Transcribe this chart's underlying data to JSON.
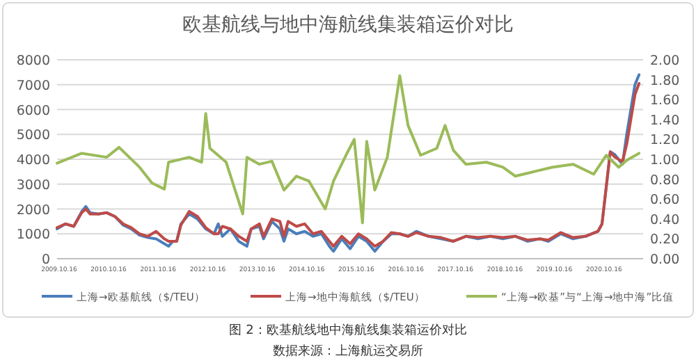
{
  "chart_data": {
    "type": "line",
    "title": "欧基航线与地中海航线集装箱运价对比",
    "annotations": [
      "图 2：欧基航线地中海航线集装箱运价对比",
      "数据来源：上海航运交易所"
    ],
    "xlim": [
      "2009-10-01",
      "2021-07-31"
    ],
    "xticks": [
      {
        "value": "2009-10-16",
        "label": "2009.10.16"
      },
      {
        "value": "2010-10-16",
        "label": "2010.10.16"
      },
      {
        "value": "2011-10-16",
        "label": "2011.10.16"
      },
      {
        "value": "2012-10-16",
        "label": "2012.10.16"
      },
      {
        "value": "2013-10-16",
        "label": "2013.10.16"
      },
      {
        "value": "2014-10-16",
        "label": "2014.10.16"
      },
      {
        "value": "2015-10-16",
        "label": "2015.10.16"
      },
      {
        "value": "2016-10-16",
        "label": "2016.10.16"
      },
      {
        "value": "2017-10-16",
        "label": "2017.10.16"
      },
      {
        "value": "2018-10-16",
        "label": "2018.10.16"
      },
      {
        "value": "2019-10-16",
        "label": "2019.10.16"
      },
      {
        "value": "2020-10-16",
        "label": "2020.10.16"
      }
    ],
    "ylim": [
      0,
      8000
    ],
    "yticks": [
      0,
      1000,
      2000,
      3000,
      4000,
      5000,
      6000,
      7000,
      8000
    ],
    "y2lim": [
      0,
      2
    ],
    "y2ticks": [
      {
        "value": 0,
        "label": "0.00"
      },
      {
        "value": 0.2,
        "label": "0.20"
      },
      {
        "value": 0.4,
        "label": "0.40"
      },
      {
        "value": 0.6,
        "label": "0.60"
      },
      {
        "value": 0.8,
        "label": "0.80"
      },
      {
        "value": 1,
        "label": "1.00"
      },
      {
        "value": 1.2,
        "label": "1.20"
      },
      {
        "value": 1.4,
        "label": "1.40"
      },
      {
        "value": 1.6,
        "label": "1.60"
      },
      {
        "value": 1.8,
        "label": "1.80"
      },
      {
        "value": 2,
        "label": "2.00"
      }
    ],
    "grid": "y",
    "legend": "bottom",
    "marker": "none",
    "line_style": "solid",
    "series": [
      {
        "name": "上海→欧基航线（$/TEU）",
        "color": "#4a7ebb",
        "x": [
          "2009-10",
          "2009-12",
          "2010-02",
          "2010-04",
          "2010-05",
          "2010-06",
          "2010-08",
          "2010-10",
          "2010-12",
          "2011-02",
          "2011-04",
          "2011-06",
          "2011-08",
          "2011-10",
          "2011-12",
          "2012-01",
          "2012-02",
          "2012-03",
          "2012-04",
          "2012-06",
          "2012-08",
          "2012-10",
          "2012-12",
          "2013-01",
          "2013-02",
          "2013-04",
          "2013-06",
          "2013-08",
          "2013-09",
          "2013-11",
          "2013-12",
          "2014-02",
          "2014-04",
          "2014-05",
          "2014-06",
          "2014-08",
          "2014-10",
          "2014-12",
          "2015-02",
          "2015-04",
          "2015-05",
          "2015-07",
          "2015-09",
          "2015-11",
          "2016-01",
          "2016-03",
          "2016-05",
          "2016-07",
          "2016-09",
          "2016-11",
          "2017-01",
          "2017-04",
          "2017-07",
          "2017-10",
          "2018-01",
          "2018-04",
          "2018-07",
          "2018-10",
          "2019-01",
          "2019-04",
          "2019-07",
          "2019-09",
          "2019-12",
          "2020-03",
          "2020-06",
          "2020-09",
          "2020-10",
          "2020-12",
          "2021-01",
          "2021-03",
          "2021-04",
          "2021-06",
          "2021-07"
        ],
        "values": [
          1200,
          1400,
          1300,
          1900,
          2100,
          1850,
          1800,
          1850,
          1700,
          1350,
          1200,
          950,
          850,
          800,
          600,
          500,
          700,
          700,
          1400,
          1800,
          1600,
          1200,
          1000,
          1400,
          900,
          1200,
          700,
          500,
          1200,
          1300,
          800,
          1500,
          1200,
          700,
          1200,
          1000,
          1100,
          900,
          1000,
          500,
          300,
          800,
          400,
          900,
          700,
          300,
          700,
          1000,
          1000,
          900,
          1100,
          900,
          800,
          700,
          900,
          800,
          900,
          800,
          900,
          700,
          800,
          700,
          1000,
          800,
          900,
          1100,
          1400,
          4300,
          4200,
          3800,
          5000,
          7000,
          7400
        ]
      },
      {
        "name": "上海→地中海航线（$/TEU）",
        "color": "#be4b48",
        "x": [
          "2009-10",
          "2009-12",
          "2010-02",
          "2010-04",
          "2010-05",
          "2010-06",
          "2010-08",
          "2010-10",
          "2010-12",
          "2011-02",
          "2011-04",
          "2011-06",
          "2011-08",
          "2011-10",
          "2011-12",
          "2012-01",
          "2012-02",
          "2012-03",
          "2012-04",
          "2012-06",
          "2012-08",
          "2012-10",
          "2012-12",
          "2013-01",
          "2013-02",
          "2013-04",
          "2013-06",
          "2013-08",
          "2013-09",
          "2013-11",
          "2013-12",
          "2014-02",
          "2014-04",
          "2014-05",
          "2014-06",
          "2014-08",
          "2014-10",
          "2014-12",
          "2015-02",
          "2015-04",
          "2015-05",
          "2015-07",
          "2015-09",
          "2015-11",
          "2016-01",
          "2016-03",
          "2016-05",
          "2016-07",
          "2016-09",
          "2016-11",
          "2017-01",
          "2017-04",
          "2017-07",
          "2017-10",
          "2018-01",
          "2018-04",
          "2018-07",
          "2018-10",
          "2019-01",
          "2019-04",
          "2019-07",
          "2019-09",
          "2019-12",
          "2020-03",
          "2020-06",
          "2020-09",
          "2020-10",
          "2020-12",
          "2021-01",
          "2021-03",
          "2021-04",
          "2021-06",
          "2021-07"
        ],
        "values": [
          1250,
          1400,
          1300,
          1850,
          2000,
          1800,
          1800,
          1850,
          1700,
          1400,
          1250,
          1000,
          900,
          1100,
          800,
          700,
          700,
          700,
          1350,
          1900,
          1700,
          1250,
          1000,
          1000,
          1300,
          1200,
          900,
          700,
          1200,
          1400,
          900,
          1600,
          1500,
          900,
          1500,
          1300,
          1400,
          1000,
          1100,
          700,
          500,
          900,
          600,
          1000,
          800,
          500,
          700,
          1050,
          1000,
          900,
          1050,
          900,
          850,
          700,
          900,
          850,
          900,
          850,
          900,
          750,
          800,
          750,
          1050,
          850,
          900,
          1100,
          1400,
          4300,
          4100,
          3900,
          4600,
          6600,
          7050
        ]
      },
      {
        "name": "“上海→欧基”与“上海→地中海”比值",
        "color": "#9bbb59",
        "axis": "y2",
        "x": [
          "2009-10",
          "2010-04",
          "2010-10",
          "2011-01",
          "2011-06",
          "2011-09",
          "2011-12",
          "2012-01",
          "2012-06",
          "2012-09",
          "2012-10",
          "2012-11",
          "2013-03",
          "2013-07",
          "2013-08",
          "2013-11",
          "2014-02",
          "2014-05",
          "2014-08",
          "2014-11",
          "2015-03",
          "2015-05",
          "2015-08",
          "2015-10",
          "2015-12",
          "2016-01",
          "2016-03",
          "2016-06",
          "2016-09",
          "2016-11",
          "2017-02",
          "2017-06",
          "2017-08",
          "2017-10",
          "2018-01",
          "2018-06",
          "2018-10",
          "2019-01",
          "2019-06",
          "2019-10",
          "2020-03",
          "2020-08",
          "2020-11",
          "2021-02",
          "2021-04",
          "2021-07"
        ],
        "values": [
          0.96,
          1.06,
          1.02,
          1.12,
          0.92,
          0.76,
          0.7,
          0.97,
          1.02,
          0.97,
          1.46,
          1.11,
          0.97,
          0.45,
          1.02,
          0.95,
          0.98,
          0.69,
          0.83,
          0.78,
          0.5,
          0.78,
          1.04,
          1.2,
          0.36,
          1.18,
          0.69,
          1.02,
          1.84,
          1.34,
          1.04,
          1.11,
          1.34,
          1.09,
          0.95,
          0.97,
          0.92,
          0.83,
          0.88,
          0.92,
          0.95,
          0.85,
          1.04,
          0.92,
          0.99,
          1.06
        ]
      }
    ]
  }
}
